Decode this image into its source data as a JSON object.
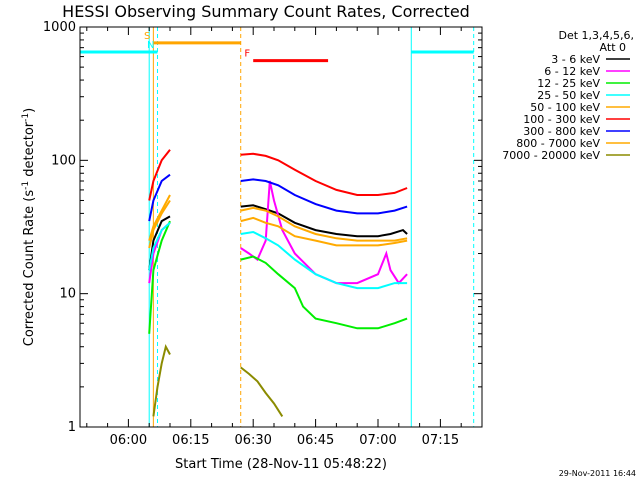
{
  "chart_data": {
    "type": "line",
    "title": "HESSI Observing Summary Count Rates, Corrected",
    "xlabel": "Start Time (28-Nov-11 05:48:22)",
    "ylabel_main": "Corrected Count Rate (s",
    "ylabel_sup1": "-1",
    "ylabel_mid": " detector",
    "ylabel_sup2": "-1",
    "ylabel_end": ")",
    "y_scale": "log",
    "ylim": [
      1,
      1000
    ],
    "xlim": [
      "05:48:22",
      "07:25:00"
    ],
    "x_ticks": [
      "06:00",
      "06:15",
      "06:30",
      "06:45",
      "07:00",
      "07:15"
    ],
    "y_ticks": [
      "1",
      "10",
      "100",
      "1000"
    ],
    "legend_header": [
      "Det 1,3,4,5,6,",
      "Att 0"
    ],
    "legend_placement": "right",
    "timestamp": "29-Nov-2011 16:44",
    "series": [
      {
        "name": "3 - 6 keV",
        "color": "#000000",
        "points": [
          [
            "06:05",
            15
          ],
          [
            "06:06",
            25
          ],
          [
            "06:08",
            35
          ],
          [
            "06:10",
            38
          ],
          [
            "06:27",
            45
          ],
          [
            "06:30",
            46
          ],
          [
            "06:33",
            43
          ],
          [
            "06:36",
            40
          ],
          [
            "06:40",
            34
          ],
          [
            "06:45",
            30
          ],
          [
            "06:50",
            28
          ],
          [
            "06:55",
            27
          ],
          [
            "07:00",
            27
          ],
          [
            "07:03",
            28
          ],
          [
            "07:06",
            30
          ],
          [
            "07:07",
            28
          ]
        ]
      },
      {
        "name": "6 - 12 keV",
        "color": "#ff00ff",
        "points": [
          [
            "06:05",
            12
          ],
          [
            "06:06",
            20
          ],
          [
            "06:08",
            30
          ],
          [
            "06:10",
            34
          ],
          [
            "06:27",
            22
          ],
          [
            "06:29",
            20
          ],
          [
            "06:31",
            18
          ],
          [
            "06:33",
            25
          ],
          [
            "06:34",
            70
          ],
          [
            "06:35",
            50
          ],
          [
            "06:37",
            30
          ],
          [
            "06:40",
            20
          ],
          [
            "06:45",
            14
          ],
          [
            "06:50",
            12
          ],
          [
            "06:55",
            12
          ],
          [
            "07:00",
            14
          ],
          [
            "07:02",
            20
          ],
          [
            "07:03",
            15
          ],
          [
            "07:05",
            12
          ],
          [
            "07:07",
            14
          ]
        ]
      },
      {
        "name": "12 - 25 keV",
        "color": "#00ee00",
        "points": [
          [
            "06:05",
            5
          ],
          [
            "06:06",
            15
          ],
          [
            "06:08",
            25
          ],
          [
            "06:10",
            35
          ],
          [
            "06:27",
            18
          ],
          [
            "06:30",
            19
          ],
          [
            "06:33",
            17
          ],
          [
            "06:36",
            14
          ],
          [
            "06:40",
            11
          ],
          [
            "06:42",
            8
          ],
          [
            "06:45",
            6.5
          ],
          [
            "06:50",
            6
          ],
          [
            "06:55",
            5.5
          ],
          [
            "07:00",
            5.5
          ],
          [
            "07:04",
            6
          ],
          [
            "07:07",
            6.5
          ]
        ]
      },
      {
        "name": "25 - 50 keV",
        "color": "#00ffff",
        "points": [
          [
            "06:05",
            15
          ],
          [
            "06:06",
            22
          ],
          [
            "06:08",
            30
          ],
          [
            "06:10",
            34
          ],
          [
            "06:27",
            28
          ],
          [
            "06:30",
            29
          ],
          [
            "06:33",
            26
          ],
          [
            "06:36",
            23
          ],
          [
            "06:40",
            18
          ],
          [
            "06:45",
            14
          ],
          [
            "06:50",
            12
          ],
          [
            "06:55",
            11
          ],
          [
            "07:00",
            11
          ],
          [
            "07:04",
            12
          ],
          [
            "07:07",
            12
          ]
        ]
      },
      {
        "name": "50 - 100 keV",
        "color": "#ffaa00",
        "points": [
          [
            "06:05",
            22
          ],
          [
            "06:06",
            30
          ],
          [
            "06:08",
            40
          ],
          [
            "06:10",
            50
          ],
          [
            "06:27",
            35
          ],
          [
            "06:30",
            37
          ],
          [
            "06:33",
            34
          ],
          [
            "06:36",
            32
          ],
          [
            "06:40",
            27
          ],
          [
            "06:45",
            25
          ],
          [
            "06:50",
            23
          ],
          [
            "06:55",
            23
          ],
          [
            "07:00",
            23
          ],
          [
            "07:04",
            24
          ],
          [
            "07:07",
            25
          ]
        ]
      },
      {
        "name": "100 - 300 keV",
        "color": "#ff0000",
        "points": [
          [
            "06:05",
            50
          ],
          [
            "06:06",
            70
          ],
          [
            "06:08",
            100
          ],
          [
            "06:10",
            120
          ],
          [
            "06:27",
            110
          ],
          [
            "06:30",
            112
          ],
          [
            "06:33",
            108
          ],
          [
            "06:36",
            100
          ],
          [
            "06:40",
            85
          ],
          [
            "06:45",
            70
          ],
          [
            "06:50",
            60
          ],
          [
            "06:55",
            55
          ],
          [
            "07:00",
            55
          ],
          [
            "07:04",
            57
          ],
          [
            "07:07",
            62
          ]
        ]
      },
      {
        "name": "300 - 800 keV",
        "color": "#0000ff",
        "points": [
          [
            "06:05",
            35
          ],
          [
            "06:06",
            50
          ],
          [
            "06:08",
            70
          ],
          [
            "06:10",
            78
          ],
          [
            "06:27",
            70
          ],
          [
            "06:30",
            72
          ],
          [
            "06:33",
            70
          ],
          [
            "06:36",
            65
          ],
          [
            "06:40",
            55
          ],
          [
            "06:45",
            47
          ],
          [
            "06:50",
            42
          ],
          [
            "06:55",
            40
          ],
          [
            "07:00",
            40
          ],
          [
            "07:04",
            42
          ],
          [
            "07:07",
            45
          ]
        ]
      },
      {
        "name": "800 - 7000 keV",
        "color": "#ffaa00",
        "points": [
          [
            "06:05",
            25
          ],
          [
            "06:06",
            32
          ],
          [
            "06:08",
            42
          ],
          [
            "06:10",
            55
          ],
          [
            "06:27",
            42
          ],
          [
            "06:30",
            44
          ],
          [
            "06:33",
            42
          ],
          [
            "06:36",
            38
          ],
          [
            "06:40",
            32
          ],
          [
            "06:45",
            28
          ],
          [
            "06:50",
            26
          ],
          [
            "06:55",
            25
          ],
          [
            "07:00",
            25
          ],
          [
            "07:04",
            25
          ],
          [
            "07:07",
            26
          ]
        ]
      },
      {
        "name": "7000 - 20000 keV",
        "color": "#8b8b00",
        "points": [
          [
            "06:06",
            1.2
          ],
          [
            "06:07",
            2
          ],
          [
            "06:08",
            3
          ],
          [
            "06:09",
            4
          ],
          [
            "06:10",
            3.5
          ],
          [
            "06:27",
            2.8
          ],
          [
            "06:29",
            2.5
          ],
          [
            "06:31",
            2.2
          ],
          [
            "06:33",
            1.8
          ],
          [
            "06:35",
            1.5
          ],
          [
            "06:37",
            1.2
          ]
        ]
      }
    ],
    "vertical_markers": [
      {
        "time": "06:05",
        "color": "#00ffff",
        "style": "solid"
      },
      {
        "time": "06:07",
        "color": "#00ffff",
        "style": "dashed"
      },
      {
        "time": "06:06",
        "color": "#ffa500",
        "style": "solid"
      },
      {
        "time": "06:27",
        "color": "#ffa500",
        "style": "dashed"
      },
      {
        "time": "07:08",
        "color": "#00ffff",
        "style": "solid"
      },
      {
        "time": "07:23",
        "color": "#00ffff",
        "style": "dashed"
      }
    ],
    "flag_bars": [
      {
        "label": "",
        "color": "#00ffff",
        "y": 650,
        "from": "05:48:22",
        "to": "06:07"
      },
      {
        "label": "N",
        "color": "#00ffff",
        "y": 650,
        "from": "06:07",
        "to": "06:07"
      },
      {
        "label": "S",
        "color": "#ffa500",
        "y": 760,
        "from": "06:06",
        "to": "06:27"
      },
      {
        "label": "F",
        "color": "#ff0000",
        "y": 560,
        "from": "06:30",
        "to": "06:48"
      },
      {
        "label": "",
        "color": "#00ffff",
        "y": 650,
        "from": "07:08",
        "to": "07:23"
      }
    ]
  }
}
